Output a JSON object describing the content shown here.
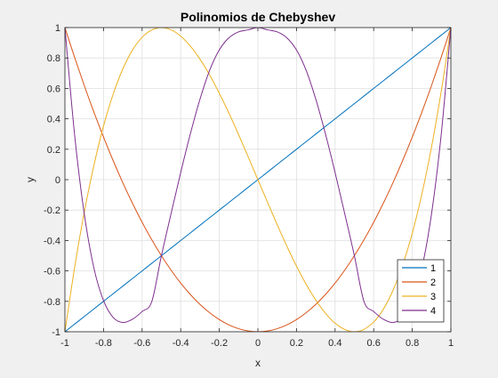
{
  "chart_data": {
    "type": "line",
    "title": "Polinomios de Chebyshev",
    "xlabel": "x",
    "ylabel": "y",
    "xlim": [
      -1,
      1
    ],
    "ylim": [
      -1,
      1
    ],
    "xticks": [
      -1,
      -0.8,
      -0.6,
      -0.4,
      -0.2,
      0,
      0.2,
      0.4,
      0.6,
      0.8,
      1
    ],
    "xtick_labels": [
      "-1",
      "-0.8",
      "-0.6",
      "-0.4",
      "-0.2",
      "0",
      "0.2",
      "0.4",
      "0.6",
      "0.8",
      "1"
    ],
    "yticks": [
      -1,
      -0.8,
      -0.6,
      -0.4,
      -0.2,
      0,
      0.2,
      0.4,
      0.6,
      0.8,
      1
    ],
    "ytick_labels": [
      "-1",
      "-0.8",
      "-0.6",
      "-0.4",
      "-0.2",
      "0",
      "0.2",
      "0.4",
      "0.6",
      "0.8",
      "1"
    ],
    "grid": true,
    "legend_position": "bottom-right",
    "x": [
      -1,
      -0.95,
      -0.9,
      -0.85,
      -0.8,
      -0.75,
      -0.7,
      -0.65,
      -0.6,
      -0.55,
      -0.5,
      -0.45,
      -0.4,
      -0.35,
      -0.3,
      -0.25,
      -0.2,
      -0.15,
      -0.1,
      -0.05,
      0,
      0.05,
      0.1,
      0.15,
      0.2,
      0.25,
      0.3,
      0.35,
      0.4,
      0.45,
      0.5,
      0.55,
      0.6,
      0.65,
      0.7,
      0.75,
      0.8,
      0.85,
      0.9,
      0.95,
      1
    ],
    "series": [
      {
        "name": "1",
        "color": "#0072bd",
        "values": [
          -1,
          -0.95,
          -0.9,
          -0.85,
          -0.8,
          -0.75,
          -0.7,
          -0.65,
          -0.6,
          -0.55,
          -0.5,
          -0.45,
          -0.4,
          -0.35,
          -0.3,
          -0.25,
          -0.2,
          -0.15,
          -0.1,
          -0.05,
          0,
          0.05,
          0.1,
          0.15,
          0.2,
          0.25,
          0.3,
          0.35,
          0.4,
          0.45,
          0.5,
          0.55,
          0.6,
          0.65,
          0.7,
          0.75,
          0.8,
          0.85,
          0.9,
          0.95,
          1
        ]
      },
      {
        "name": "2",
        "color": "#d95319",
        "values": [
          1,
          0.805,
          0.62,
          0.445,
          0.28,
          0.125,
          -0.02,
          -0.155,
          -0.28,
          -0.395,
          -0.5,
          -0.595,
          -0.68,
          -0.755,
          -0.82,
          -0.875,
          -0.92,
          -0.955,
          -0.98,
          -0.995,
          -1,
          -0.995,
          -0.98,
          -0.955,
          -0.92,
          -0.875,
          -0.82,
          -0.755,
          -0.68,
          -0.595,
          -0.5,
          -0.395,
          -0.28,
          -0.155,
          -0.02,
          0.125,
          0.28,
          0.445,
          0.62,
          0.805,
          1
        ]
      },
      {
        "name": "3",
        "color": "#edb120",
        "values": [
          -1,
          -0.58,
          -0.216,
          0.093,
          0.352,
          0.562,
          0.728,
          0.852,
          0.936,
          0.984,
          1,
          0.985,
          0.944,
          0.878,
          0.792,
          0.688,
          0.568,
          0.437,
          0.296,
          0.149,
          0,
          -0.149,
          -0.296,
          -0.437,
          -0.568,
          -0.688,
          -0.792,
          -0.878,
          -0.944,
          -0.985,
          -1,
          -0.984,
          -0.936,
          -0.852,
          -0.728,
          -0.562,
          -0.352,
          -0.093,
          0.216,
          0.58,
          1
        ]
      },
      {
        "name": "4",
        "color": "#7e2f8e",
        "values": [
          1,
          0.297,
          -0.223,
          -0.58,
          -0.795,
          -0.906,
          -0.939,
          -0.918,
          -0.867,
          -0.802,
          -0.5,
          -0.224,
          0.047,
          0.301,
          0.529,
          0.719,
          0.853,
          0.933,
          0.972,
          0.985,
          1,
          0.985,
          0.972,
          0.933,
          0.853,
          0.719,
          0.529,
          0.301,
          0.047,
          -0.224,
          -0.5,
          -0.802,
          -0.867,
          -0.918,
          -0.939,
          -0.906,
          -0.795,
          -0.58,
          -0.223,
          0.297,
          1
        ]
      }
    ]
  }
}
